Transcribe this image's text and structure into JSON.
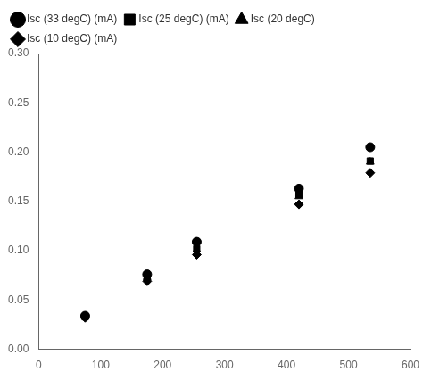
{
  "chart_data": {
    "type": "scatter",
    "x": [
      75,
      175,
      255,
      420,
      535
    ],
    "series": [
      {
        "name": "Isc (33 degC) (mA)",
        "marker": "circle",
        "values": [
          0.034,
          0.076,
          0.109,
          0.163,
          0.205
        ]
      },
      {
        "name": "Isc (25 degC) (mA)",
        "marker": "square",
        "values": [
          0.033,
          0.074,
          0.102,
          0.157,
          0.191
        ]
      },
      {
        "name": "Isc (20 degC)",
        "marker": "triangle",
        "values": [
          0.033,
          0.073,
          0.101,
          0.155,
          0.19
        ]
      },
      {
        "name": "Isc (10 degC) (mA)",
        "marker": "diamond",
        "values": [
          0.032,
          0.069,
          0.096,
          0.147,
          0.179
        ]
      }
    ],
    "color": "black",
    "xlim": [
      0,
      600
    ],
    "ylim": [
      0.0,
      0.3
    ],
    "xticks": [
      0,
      100,
      200,
      300,
      400,
      500,
      600
    ],
    "yticks": [
      {
        "value": 0.0,
        "label": "0.00"
      },
      0.05,
      {
        "value": 0.1,
        "label": "0.10"
      },
      0.15,
      {
        "value": 0.2,
        "label": "0.20"
      },
      0.25,
      {
        "value": 0.3,
        "label": "0.30"
      }
    ],
    "legend": "upper left",
    "grid": false
  }
}
